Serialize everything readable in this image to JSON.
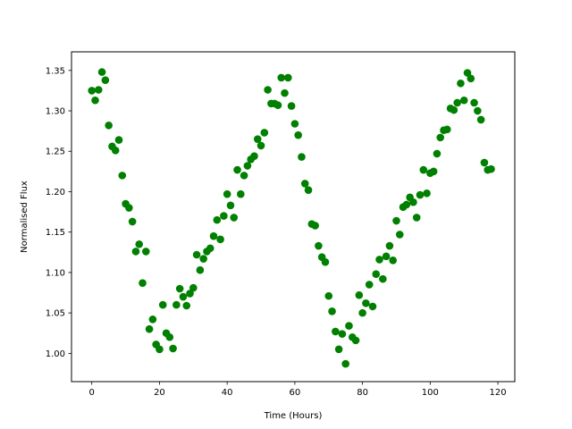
{
  "chart_data": {
    "type": "scatter",
    "xlabel": "Time (Hours)",
    "ylabel": "Normalised Flux",
    "xlim": [
      -6,
      125
    ],
    "ylim": [
      0.965,
      1.373
    ],
    "xticks": [
      0,
      20,
      40,
      60,
      80,
      100,
      120
    ],
    "yticks": [
      1.0,
      1.05,
      1.1,
      1.15,
      1.2,
      1.25,
      1.3,
      1.35
    ],
    "grid": false,
    "legend": "none",
    "marker_color": "#008000",
    "series": [
      {
        "points": [
          [
            0,
            1.325
          ],
          [
            1,
            1.313
          ],
          [
            2,
            1.326
          ],
          [
            3,
            1.348
          ],
          [
            4,
            1.338
          ],
          [
            5,
            1.282
          ],
          [
            6,
            1.256
          ],
          [
            7,
            1.251
          ],
          [
            8,
            1.264
          ],
          [
            9,
            1.22
          ],
          [
            10,
            1.185
          ],
          [
            11,
            1.18
          ],
          [
            12,
            1.163
          ],
          [
            13,
            1.126
          ],
          [
            14,
            1.135
          ],
          [
            15,
            1.087
          ],
          [
            16,
            1.126
          ],
          [
            17,
            1.03
          ],
          [
            18,
            1.042
          ],
          [
            19,
            1.011
          ],
          [
            20,
            1.005
          ],
          [
            21,
            1.06
          ],
          [
            22,
            1.025
          ],
          [
            23,
            1.02
          ],
          [
            24,
            1.006
          ],
          [
            25,
            1.06
          ],
          [
            26,
            1.08
          ],
          [
            27,
            1.07
          ],
          [
            28,
            1.059
          ],
          [
            29,
            1.074
          ],
          [
            30,
            1.081
          ],
          [
            31,
            1.122
          ],
          [
            32,
            1.103
          ],
          [
            33,
            1.117
          ],
          [
            34,
            1.126
          ],
          [
            35,
            1.13
          ],
          [
            36,
            1.145
          ],
          [
            37,
            1.165
          ],
          [
            38,
            1.141
          ],
          [
            39,
            1.17
          ],
          [
            40,
            1.197
          ],
          [
            41,
            1.183
          ],
          [
            42,
            1.168
          ],
          [
            43,
            1.227
          ],
          [
            44,
            1.197
          ],
          [
            45,
            1.22
          ],
          [
            46,
            1.232
          ],
          [
            47,
            1.24
          ],
          [
            48,
            1.244
          ],
          [
            49,
            1.265
          ],
          [
            50,
            1.257
          ],
          [
            51,
            1.273
          ],
          [
            52,
            1.326
          ],
          [
            53,
            1.309
          ],
          [
            54,
            1.309
          ],
          [
            55,
            1.307
          ],
          [
            56,
            1.341
          ],
          [
            57,
            1.322
          ],
          [
            58,
            1.341
          ],
          [
            59,
            1.306
          ],
          [
            60,
            1.284
          ],
          [
            61,
            1.27
          ],
          [
            62,
            1.243
          ],
          [
            63,
            1.21
          ],
          [
            64,
            1.202
          ],
          [
            65,
            1.16
          ],
          [
            66,
            1.158
          ],
          [
            67,
            1.133
          ],
          [
            68,
            1.119
          ],
          [
            69,
            1.113
          ],
          [
            70,
            1.071
          ],
          [
            71,
            1.052
          ],
          [
            72,
            1.027
          ],
          [
            73,
            1.005
          ],
          [
            74,
            1.024
          ],
          [
            75,
            0.987
          ],
          [
            76,
            1.034
          ],
          [
            77,
            1.02
          ],
          [
            78,
            1.016
          ],
          [
            79,
            1.072
          ],
          [
            80,
            1.05
          ],
          [
            81,
            1.062
          ],
          [
            82,
            1.085
          ],
          [
            83,
            1.058
          ],
          [
            84,
            1.098
          ],
          [
            85,
            1.116
          ],
          [
            86,
            1.092
          ],
          [
            87,
            1.12
          ],
          [
            88,
            1.133
          ],
          [
            89,
            1.115
          ],
          [
            90,
            1.164
          ],
          [
            91,
            1.147
          ],
          [
            92,
            1.181
          ],
          [
            93,
            1.184
          ],
          [
            94,
            1.193
          ],
          [
            95,
            1.187
          ],
          [
            96,
            1.168
          ],
          [
            97,
            1.196
          ],
          [
            98,
            1.227
          ],
          [
            99,
            1.198
          ],
          [
            100,
            1.223
          ],
          [
            101,
            1.225
          ],
          [
            102,
            1.247
          ],
          [
            103,
            1.267
          ],
          [
            104,
            1.276
          ],
          [
            105,
            1.277
          ],
          [
            106,
            1.303
          ],
          [
            107,
            1.301
          ],
          [
            108,
            1.31
          ],
          [
            109,
            1.334
          ],
          [
            110,
            1.313
          ],
          [
            111,
            1.347
          ],
          [
            112,
            1.34
          ],
          [
            113,
            1.31
          ],
          [
            114,
            1.3
          ],
          [
            115,
            1.289
          ],
          [
            116,
            1.236
          ],
          [
            117,
            1.227
          ],
          [
            118,
            1.228
          ]
        ]
      }
    ]
  }
}
